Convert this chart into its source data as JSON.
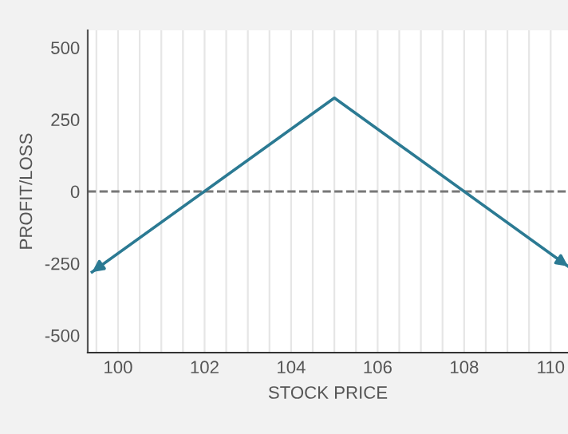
{
  "chart_data": {
    "type": "line",
    "xlabel": "STOCK PRICE",
    "ylabel": "PROFIT/LOSS",
    "x": [
      99.4,
      105,
      110.4
    ],
    "series": [
      {
        "color": "#2b7a93",
        "values": [
          -280,
          325,
          -260
        ]
      }
    ],
    "xlim": [
      99.3,
      110.4
    ],
    "ylim": [
      -560,
      560
    ],
    "xticks": [
      {
        "value": 99.5,
        "label": null
      },
      100,
      {
        "value": 100.5,
        "label": null
      },
      {
        "value": 101,
        "label": null
      },
      {
        "value": 101.5,
        "label": null
      },
      102,
      {
        "value": 102.5,
        "label": null
      },
      {
        "value": 103,
        "label": null
      },
      {
        "value": 103.5,
        "label": null
      },
      104,
      {
        "value": 104.5,
        "label": null
      },
      {
        "value": 105,
        "label": null
      },
      {
        "value": 105.5,
        "label": null
      },
      106,
      {
        "value": 106.5,
        "label": null
      },
      {
        "value": 107,
        "label": null
      },
      {
        "value": 107.5,
        "label": null
      },
      108,
      {
        "value": 108.5,
        "label": null
      },
      {
        "value": 109,
        "label": null
      },
      {
        "value": 109.5,
        "label": null
      },
      110
    ],
    "yticks": [
      -500,
      -250,
      0,
      250,
      500
    ],
    "ref_lines": [
      {
        "axis": "y",
        "value": 0,
        "color": "#777777",
        "line_style": "dashed"
      }
    ],
    "grid": "x",
    "line_style": "solid"
  }
}
